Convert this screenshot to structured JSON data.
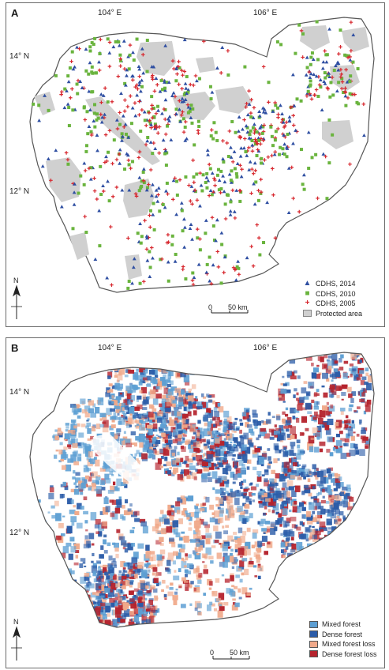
{
  "panel_a": {
    "letter": "A",
    "lon_labels": [
      "104° E",
      "106° E"
    ],
    "lat_labels": [
      "14° N",
      "12° N"
    ],
    "north": "N",
    "scale": {
      "zero": "0",
      "dist": "50 km"
    },
    "legend": [
      {
        "label": "CDHS, 2014",
        "symbol": "triangle",
        "color": "#2f4fa2"
      },
      {
        "label": "CDHS, 2010",
        "symbol": "square",
        "color": "#6ab43e"
      },
      {
        "label": "CDHS, 2005",
        "symbol": "cross",
        "color": "#d7282f"
      },
      {
        "label": "Protected area",
        "symbol": "box",
        "color": "#d0d0d0"
      }
    ]
  },
  "panel_b": {
    "letter": "B",
    "lon_labels": [
      "104° E",
      "106° E"
    ],
    "lat_labels": [
      "14° N",
      "12° N"
    ],
    "north": "N",
    "scale": {
      "zero": "0",
      "dist": "50 km"
    },
    "legend": [
      {
        "label": "Mixed forest",
        "color": "#5d9fd3"
      },
      {
        "label": "Dense forest",
        "color": "#2b5ca8"
      },
      {
        "label": "Mixed forest loss",
        "color": "#f0a98a"
      },
      {
        "label": "Dense forest loss",
        "color": "#b5232d"
      }
    ]
  }
}
